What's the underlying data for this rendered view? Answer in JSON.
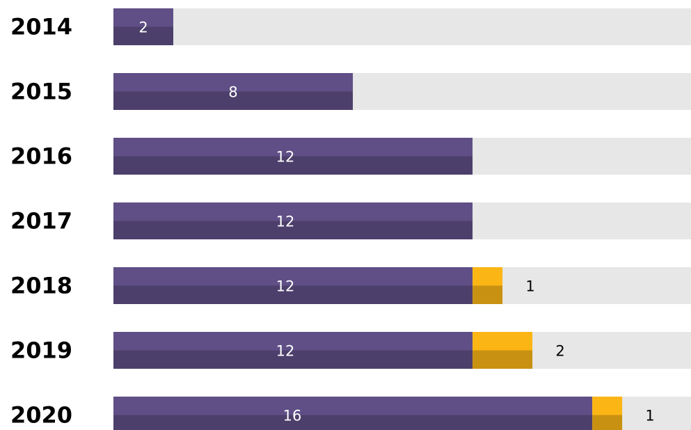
{
  "chart_data": {
    "type": "stacked_barh",
    "categories": [
      "2014",
      "2015",
      "2016",
      "2017",
      "2018",
      "2019",
      "2020"
    ],
    "series": [
      {
        "color": "#5f4f86",
        "values": [
          2,
          8,
          12,
          12,
          12,
          12,
          16
        ]
      },
      {
        "color": "#fbb515",
        "values": [
          null,
          null,
          null,
          null,
          1,
          2,
          1
        ]
      }
    ],
    "xlim": [
      0,
      19.3
    ],
    "track_color": "#e6e7e6"
  }
}
